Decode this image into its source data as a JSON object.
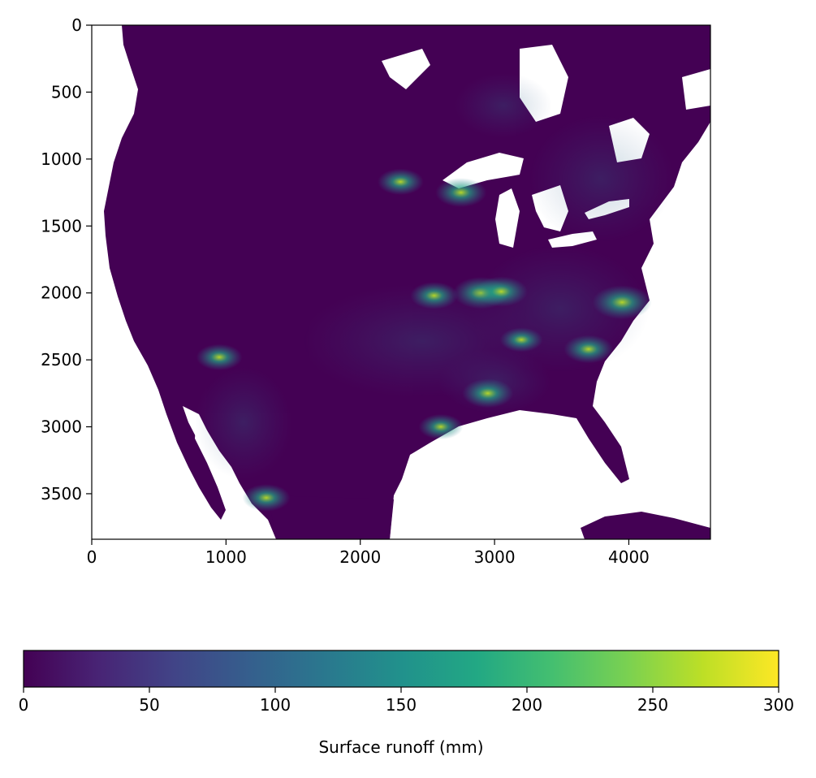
{
  "chart_data": [
    {
      "type": "heatmap",
      "title": "",
      "xlabel": "",
      "ylabel": "",
      "xlim": [
        0,
        4608
      ],
      "ylim": [
        3840,
        0
      ],
      "x_ticks": [
        0,
        1000,
        2000,
        3000,
        4000
      ],
      "y_ticks": [
        0,
        500,
        1000,
        1500,
        2000,
        2500,
        3000,
        3500
      ],
      "colormap": "viridis",
      "missing_color": "#ffffff",
      "hotspots": [
        {
          "x": 2550,
          "y": 2020,
          "value": 150
        },
        {
          "x": 2900,
          "y": 2000,
          "value": 200
        },
        {
          "x": 3050,
          "y": 1990,
          "value": 180
        },
        {
          "x": 2750,
          "y": 1250,
          "value": 170
        },
        {
          "x": 2300,
          "y": 1170,
          "value": 140
        },
        {
          "x": 3950,
          "y": 2070,
          "value": 220
        },
        {
          "x": 3700,
          "y": 2420,
          "value": 160
        },
        {
          "x": 2950,
          "y": 2750,
          "value": 170
        },
        {
          "x": 950,
          "y": 2480,
          "value": 140
        },
        {
          "x": 1300,
          "y": 3530,
          "value": 150
        },
        {
          "x": 2600,
          "y": 3000,
          "value": 130
        },
        {
          "x": 3200,
          "y": 2350,
          "value": 120
        }
      ]
    },
    {
      "type": "colorbar",
      "label": "Surface runoff (mm)",
      "range": [
        0,
        300
      ],
      "ticks": [
        0,
        50,
        100,
        150,
        200,
        250,
        300
      ],
      "colormap": "viridis"
    }
  ]
}
